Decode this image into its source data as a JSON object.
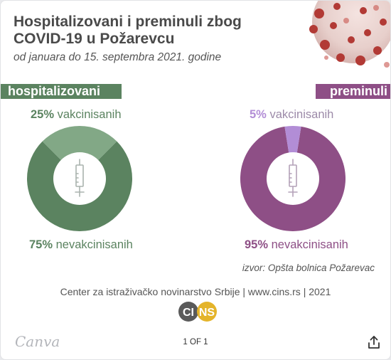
{
  "infographic": {
    "title_line1": "Hospitalizovani i preminuli zbog",
    "title_line2": "COVID-19 u Požarevcu",
    "subtitle": "od januara do 15. septembra 2021. godine",
    "hospitalized": {
      "label": "hospitalizovani",
      "vaccinated_pct": "25%",
      "vaccinated_label": "vakcinisanih",
      "unvaccinated_pct": "75%",
      "unvaccinated_label": "nevakcinisanih",
      "vaccinated_value": 25,
      "color_main": "#5b8360",
      "color_light": "#82a886",
      "text_color": "#5b8360"
    },
    "deceased": {
      "label": "preminuli",
      "vaccinated_pct": "5%",
      "vaccinated_label": "vakcinisanih",
      "unvaccinated_pct": "95%",
      "unvaccinated_label": "nevakcinisanih",
      "vaccinated_value": 5,
      "color_main": "#8e4f86",
      "color_light": "#b28dd6",
      "text_color": "#8e4f86"
    },
    "source": "izvor: Opšta bolnica Požarevac",
    "credit": "Center za istraživačko novinarstvo Srbije | www.cins.rs | 2021",
    "logo": {
      "part1": "CI",
      "part2": "NS"
    }
  },
  "viewer": {
    "brand": "Canva",
    "pagination": "1 OF 1",
    "share_icon": "share-icon"
  }
}
